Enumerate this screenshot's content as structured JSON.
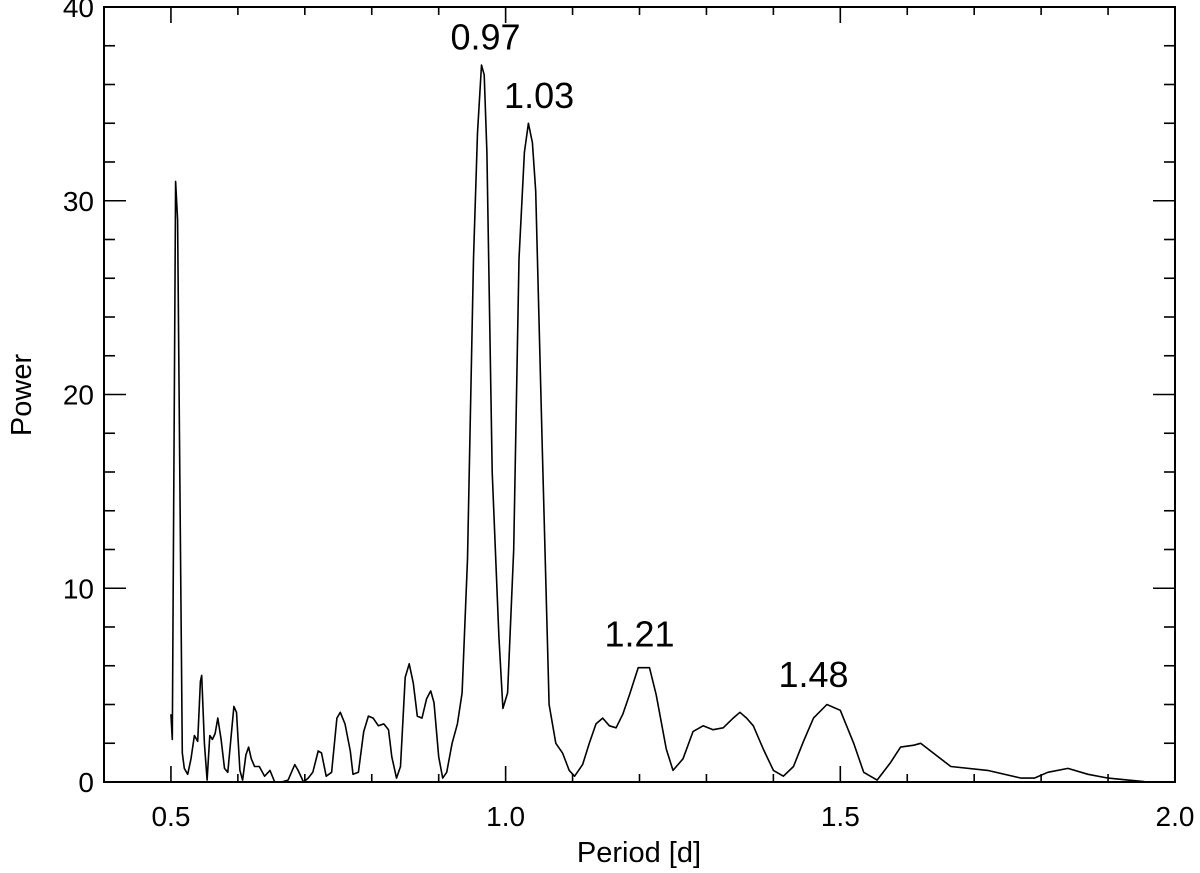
{
  "chart_data": {
    "type": "line",
    "title": "",
    "xlabel": "Period [d]",
    "ylabel": "Power",
    "xlim": [
      0.4,
      2.0
    ],
    "ylim": [
      0,
      40
    ],
    "grid": false,
    "x_ticks": [
      {
        "value": 0.5,
        "label": "0.5"
      },
      {
        "value": 1.0,
        "label": "1.0"
      },
      {
        "value": 1.5,
        "label": "1.5"
      },
      {
        "value": 2.0,
        "label": "2.0"
      }
    ],
    "y_ticks": [
      {
        "value": 0,
        "label": "0"
      },
      {
        "value": 10,
        "label": "10"
      },
      {
        "value": 20,
        "label": "20"
      },
      {
        "value": 30,
        "label": "30"
      },
      {
        "value": 40,
        "label": "40"
      }
    ],
    "annotations": [
      {
        "text": "0.97",
        "x": 0.97,
        "y": 37.8
      },
      {
        "text": "1.03",
        "x": 1.05,
        "y": 34.8
      },
      {
        "text": "1.21",
        "x": 1.2,
        "y": 7.0
      },
      {
        "text": "1.48",
        "x": 1.46,
        "y": 4.9
      }
    ],
    "series": [
      {
        "points": [
          [
            0.5,
            3.5
          ],
          [
            0.502,
            2.2
          ],
          [
            0.507,
            31.0
          ],
          [
            0.51,
            29.0
          ],
          [
            0.514,
            13.0
          ],
          [
            0.517,
            1.5
          ],
          [
            0.52,
            0.7
          ],
          [
            0.525,
            0.4
          ],
          [
            0.53,
            1.2
          ],
          [
            0.535,
            2.4
          ],
          [
            0.54,
            2.1
          ],
          [
            0.544,
            5.2
          ],
          [
            0.546,
            5.5
          ],
          [
            0.55,
            2.0
          ],
          [
            0.554,
            0.1
          ],
          [
            0.558,
            2.4
          ],
          [
            0.562,
            2.2
          ],
          [
            0.566,
            2.5
          ],
          [
            0.57,
            3.3
          ],
          [
            0.575,
            2.2
          ],
          [
            0.58,
            0.7
          ],
          [
            0.585,
            0.5
          ],
          [
            0.59,
            2.4
          ],
          [
            0.594,
            3.9
          ],
          [
            0.598,
            3.6
          ],
          [
            0.603,
            0.6
          ],
          [
            0.607,
            0.1
          ],
          [
            0.612,
            1.4
          ],
          [
            0.616,
            1.8
          ],
          [
            0.62,
            1.2
          ],
          [
            0.625,
            0.8
          ],
          [
            0.632,
            0.8
          ],
          [
            0.64,
            0.3
          ],
          [
            0.648,
            0.6
          ],
          [
            0.655,
            0.0
          ],
          [
            0.665,
            0.0
          ],
          [
            0.675,
            0.1
          ],
          [
            0.685,
            0.9
          ],
          [
            0.69,
            0.6
          ],
          [
            0.698,
            0.0
          ],
          [
            0.705,
            0.2
          ],
          [
            0.712,
            0.5
          ],
          [
            0.72,
            1.6
          ],
          [
            0.725,
            1.5
          ],
          [
            0.732,
            0.3
          ],
          [
            0.74,
            0.5
          ],
          [
            0.748,
            3.3
          ],
          [
            0.753,
            3.6
          ],
          [
            0.76,
            3.0
          ],
          [
            0.768,
            1.6
          ],
          [
            0.772,
            0.4
          ],
          [
            0.78,
            0.5
          ],
          [
            0.788,
            2.6
          ],
          [
            0.795,
            3.4
          ],
          [
            0.802,
            3.3
          ],
          [
            0.81,
            2.9
          ],
          [
            0.818,
            3.0
          ],
          [
            0.825,
            2.7
          ],
          [
            0.83,
            1.3
          ],
          [
            0.837,
            0.2
          ],
          [
            0.843,
            0.8
          ],
          [
            0.85,
            5.4
          ],
          [
            0.856,
            6.1
          ],
          [
            0.862,
            5.1
          ],
          [
            0.868,
            3.4
          ],
          [
            0.875,
            3.3
          ],
          [
            0.882,
            4.3
          ],
          [
            0.888,
            4.7
          ],
          [
            0.893,
            4.1
          ],
          [
            0.9,
            1.3
          ],
          [
            0.906,
            0.2
          ],
          [
            0.912,
            0.5
          ],
          [
            0.92,
            2.0
          ],
          [
            0.928,
            3.0
          ],
          [
            0.935,
            4.6
          ],
          [
            0.943,
            11.5
          ],
          [
            0.952,
            27.0
          ],
          [
            0.958,
            33.5
          ],
          [
            0.964,
            37.0
          ],
          [
            0.968,
            36.5
          ],
          [
            0.972,
            32.5
          ],
          [
            0.98,
            16.0
          ],
          [
            0.99,
            7.5
          ],
          [
            0.996,
            3.8
          ],
          [
            1.003,
            4.6
          ],
          [
            1.012,
            12.0
          ],
          [
            1.02,
            27.0
          ],
          [
            1.028,
            32.5
          ],
          [
            1.034,
            34.0
          ],
          [
            1.04,
            33.0
          ],
          [
            1.045,
            30.5
          ],
          [
            1.055,
            17.0
          ],
          [
            1.065,
            4.0
          ],
          [
            1.075,
            2.0
          ],
          [
            1.085,
            1.5
          ],
          [
            1.095,
            0.6
          ],
          [
            1.103,
            0.3
          ],
          [
            1.115,
            0.9
          ],
          [
            1.125,
            2.0
          ],
          [
            1.135,
            3.0
          ],
          [
            1.145,
            3.3
          ],
          [
            1.155,
            2.9
          ],
          [
            1.165,
            2.8
          ],
          [
            1.175,
            3.5
          ],
          [
            1.185,
            4.5
          ],
          [
            1.198,
            5.9
          ],
          [
            1.215,
            5.9
          ],
          [
            1.225,
            4.5
          ],
          [
            1.24,
            1.7
          ],
          [
            1.25,
            0.6
          ],
          [
            1.265,
            1.2
          ],
          [
            1.28,
            2.6
          ],
          [
            1.295,
            2.9
          ],
          [
            1.31,
            2.7
          ],
          [
            1.325,
            2.8
          ],
          [
            1.34,
            3.3
          ],
          [
            1.35,
            3.6
          ],
          [
            1.36,
            3.3
          ],
          [
            1.37,
            2.9
          ],
          [
            1.385,
            1.7
          ],
          [
            1.4,
            0.6
          ],
          [
            1.415,
            0.3
          ],
          [
            1.43,
            0.8
          ],
          [
            1.445,
            2.1
          ],
          [
            1.46,
            3.3
          ],
          [
            1.48,
            4.0
          ],
          [
            1.5,
            3.7
          ],
          [
            1.52,
            2.0
          ],
          [
            1.535,
            0.5
          ],
          [
            1.555,
            0.1
          ],
          [
            1.575,
            1.0
          ],
          [
            1.59,
            1.8
          ],
          [
            1.61,
            1.9
          ],
          [
            1.62,
            2.0
          ],
          [
            1.665,
            0.8
          ],
          [
            1.72,
            0.6
          ],
          [
            1.77,
            0.2
          ],
          [
            1.79,
            0.2
          ],
          [
            1.81,
            0.5
          ],
          [
            1.84,
            0.7
          ],
          [
            1.87,
            0.4
          ],
          [
            1.9,
            0.2
          ],
          [
            1.93,
            0.1
          ],
          [
            1.96,
            0.0
          ],
          [
            2.0,
            0.0
          ]
        ]
      }
    ]
  }
}
